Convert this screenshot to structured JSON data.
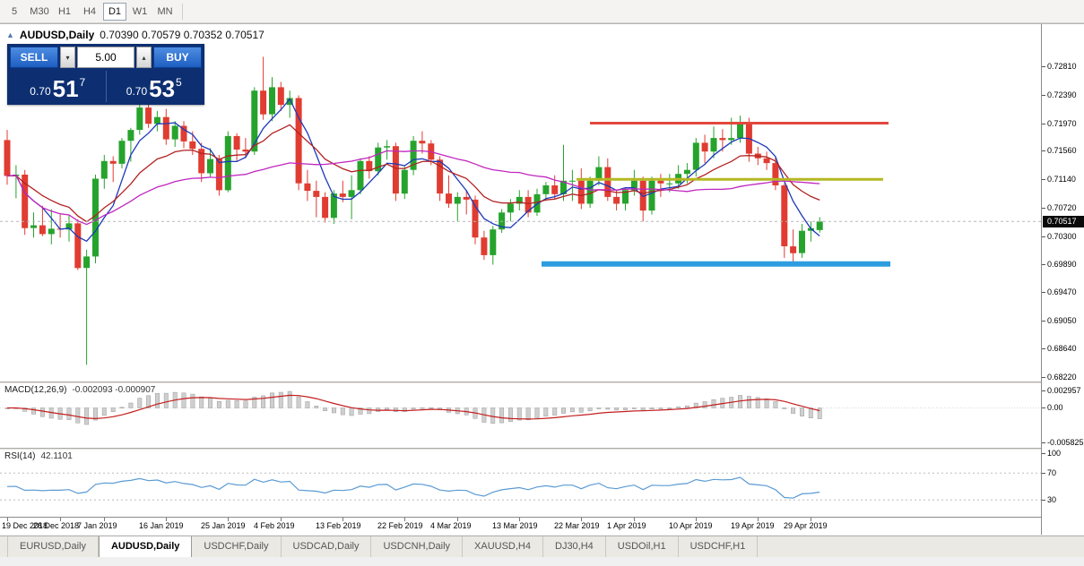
{
  "toolbar": {
    "timeframes": [
      {
        "label": "5",
        "active": false
      },
      {
        "label": "M30",
        "active": false
      },
      {
        "label": "H1",
        "active": false
      },
      {
        "label": "H4",
        "active": false
      },
      {
        "label": "D1",
        "active": true
      },
      {
        "label": "W1",
        "active": false
      },
      {
        "label": "MN",
        "active": false
      }
    ]
  },
  "chart_header": {
    "symbol": "AUDUSD,Daily",
    "ohlc_text": "0.70390 0.70579 0.70352 0.70517"
  },
  "trade_panel": {
    "sell_label": "SELL",
    "buy_label": "BUY",
    "volume": "5.00",
    "sell_price": {
      "prefix": "0.70",
      "big": "51",
      "sup": "7"
    },
    "buy_price": {
      "prefix": "0.70",
      "big": "53",
      "sup": "5"
    }
  },
  "chart_data": {
    "type": "candlestick",
    "symbol": "AUDUSD",
    "timeframe": "Daily",
    "title": "AUDUSD,Daily",
    "ohlc_current": {
      "open": 0.7039,
      "high": 0.70579,
      "low": 0.70352,
      "close": 0.70517
    },
    "current_price": 0.70517,
    "current_price_text": "0.70517",
    "price_axis_ticks": [
      0.7281,
      0.7239,
      0.7197,
      0.7156,
      0.7114,
      0.7072,
      0.703,
      0.6989,
      0.6947,
      0.6905,
      0.6864,
      0.6822
    ],
    "colors": {
      "up": "#26a32c",
      "down": "#e03c31",
      "macd_hist": "#cfcfcf",
      "macd_hist_edge": "#9a9a9a",
      "macd_signal": "#c41e1e",
      "rsi_line": "#5b9bd5"
    },
    "moving_averages": [
      {
        "type": "sma",
        "period": 5,
        "color": "#1c39bb"
      },
      {
        "type": "ema",
        "period": 13,
        "color": "#b22222"
      },
      {
        "type": "sma",
        "period": 34,
        "color": "#c026c0"
      }
    ],
    "hlines": [
      {
        "price": 0.7197,
        "color": "#e3473d",
        "from": 66,
        "to": 99.8,
        "width": 3
      },
      {
        "price": 0.7114,
        "color": "#b3b821",
        "from": 64.5,
        "to": 99.2,
        "width": 3
      },
      {
        "price": 0.6989,
        "color": "#2d9de0",
        "from": 60.5,
        "to": 100,
        "width": 6
      }
    ],
    "macd": {
      "label": "MACD(12,26,9)",
      "values_text": "-0.002093 -0.000907",
      "fast": 12,
      "slow": 26,
      "signal": 9,
      "axis_ticks": [
        {
          "text": "0.002957",
          "value": 0.002957
        },
        {
          "text": "0.00",
          "value": 0
        },
        {
          "text": "-0.005825",
          "value": -0.005825
        }
      ]
    },
    "rsi": {
      "label": "RSI(14)",
      "value_text": "42.1101",
      "period": 14,
      "levels": [
        70,
        30
      ],
      "axis_ticks": [
        {
          "text": "100",
          "value": 100
        },
        {
          "text": "70",
          "value": 70
        },
        {
          "text": "30",
          "value": 30
        }
      ]
    },
    "date_labels": [
      {
        "text": "19 Dec 2018",
        "index": 0
      },
      {
        "text": "28 Dec 2018",
        "index": 6
      },
      {
        "text": "7 Jan 2019",
        "index": 11
      },
      {
        "text": "16 Jan 2019",
        "index": 18
      },
      {
        "text": "25 Jan 2019",
        "index": 25
      },
      {
        "text": "4 Feb 2019",
        "index": 31
      },
      {
        "text": "13 Feb 2019",
        "index": 38
      },
      {
        "text": "22 Feb 2019",
        "index": 45
      },
      {
        "text": "4 Mar 2019",
        "index": 51
      },
      {
        "text": "13 Mar 2019",
        "index": 58
      },
      {
        "text": "22 Mar 2019",
        "index": 65
      },
      {
        "text": "1 Apr 2019",
        "index": 71
      },
      {
        "text": "10 Apr 2019",
        "index": 78
      },
      {
        "text": "19 Apr 2019",
        "index": 85
      },
      {
        "text": "29 Apr 2019",
        "index": 91
      }
    ],
    "candles": [
      [
        0.7172,
        0.7187,
        0.7106,
        0.7119
      ],
      [
        0.7119,
        0.7135,
        0.7086,
        0.7121
      ],
      [
        0.7121,
        0.7128,
        0.7032,
        0.7042
      ],
      [
        0.7042,
        0.7065,
        0.7028,
        0.7046
      ],
      [
        0.7046,
        0.7075,
        0.703,
        0.7033
      ],
      [
        0.7033,
        0.707,
        0.7018,
        0.7041
      ],
      [
        0.7041,
        0.7062,
        0.7028,
        0.704
      ],
      [
        0.704,
        0.7062,
        0.7022,
        0.7049
      ],
      [
        0.7049,
        0.7055,
        0.698,
        0.6983
      ],
      [
        0.6983,
        0.701,
        0.684,
        0.7
      ],
      [
        0.7,
        0.7121,
        0.699,
        0.7115
      ],
      [
        0.7115,
        0.715,
        0.71,
        0.7141
      ],
      [
        0.7141,
        0.7148,
        0.711,
        0.7137
      ],
      [
        0.7137,
        0.7175,
        0.713,
        0.7171
      ],
      [
        0.7171,
        0.719,
        0.714,
        0.7187
      ],
      [
        0.7187,
        0.7225,
        0.718,
        0.722
      ],
      [
        0.722,
        0.7235,
        0.719,
        0.7196
      ],
      [
        0.7196,
        0.7215,
        0.7185,
        0.7206
      ],
      [
        0.7206,
        0.7218,
        0.7165,
        0.7173
      ],
      [
        0.7173,
        0.72,
        0.7162,
        0.7193
      ],
      [
        0.7193,
        0.72,
        0.716,
        0.717
      ],
      [
        0.717,
        0.7185,
        0.715,
        0.7159
      ],
      [
        0.7159,
        0.7168,
        0.711,
        0.7123
      ],
      [
        0.7123,
        0.716,
        0.7118,
        0.7144
      ],
      [
        0.7144,
        0.715,
        0.709,
        0.7098
      ],
      [
        0.7098,
        0.7185,
        0.7095,
        0.7178
      ],
      [
        0.7178,
        0.7182,
        0.714,
        0.7158
      ],
      [
        0.7158,
        0.7175,
        0.7145,
        0.7155
      ],
      [
        0.7155,
        0.725,
        0.715,
        0.7245
      ],
      [
        0.7245,
        0.7295,
        0.7202,
        0.721
      ],
      [
        0.721,
        0.7265,
        0.72,
        0.725
      ],
      [
        0.725,
        0.7258,
        0.7215,
        0.7224
      ],
      [
        0.7224,
        0.7245,
        0.7205,
        0.7234
      ],
      [
        0.7234,
        0.7238,
        0.7098,
        0.7108
      ],
      [
        0.7108,
        0.7128,
        0.7082,
        0.7097
      ],
      [
        0.7097,
        0.7112,
        0.7058,
        0.7088
      ],
      [
        0.7088,
        0.7095,
        0.705,
        0.7057
      ],
      [
        0.7057,
        0.7098,
        0.7048,
        0.7093
      ],
      [
        0.7093,
        0.7112,
        0.708,
        0.7088
      ],
      [
        0.7088,
        0.712,
        0.7055,
        0.7098
      ],
      [
        0.7098,
        0.7145,
        0.7092,
        0.7141
      ],
      [
        0.7141,
        0.7148,
        0.7115,
        0.7126
      ],
      [
        0.7126,
        0.7168,
        0.712,
        0.7161
      ],
      [
        0.7161,
        0.7172,
        0.7143,
        0.7163
      ],
      [
        0.7163,
        0.7168,
        0.7082,
        0.7093
      ],
      [
        0.7093,
        0.7133,
        0.7085,
        0.7128
      ],
      [
        0.7128,
        0.7178,
        0.712,
        0.7171
      ],
      [
        0.7171,
        0.7185,
        0.7152,
        0.7167
      ],
      [
        0.7167,
        0.7172,
        0.7135,
        0.7143
      ],
      [
        0.7143,
        0.7148,
        0.7082,
        0.7093
      ],
      [
        0.7093,
        0.712,
        0.7072,
        0.7078
      ],
      [
        0.7078,
        0.7095,
        0.7052,
        0.7088
      ],
      [
        0.7088,
        0.7098,
        0.7062,
        0.7084
      ],
      [
        0.7084,
        0.709,
        0.7018,
        0.7028
      ],
      [
        0.7028,
        0.7038,
        0.6995,
        0.7002
      ],
      [
        0.7002,
        0.7045,
        0.6988,
        0.704
      ],
      [
        0.704,
        0.707,
        0.7035,
        0.7065
      ],
      [
        0.7065,
        0.7085,
        0.7052,
        0.7078
      ],
      [
        0.7078,
        0.7098,
        0.7068,
        0.7088
      ],
      [
        0.7088,
        0.7098,
        0.7058,
        0.7065
      ],
      [
        0.7065,
        0.71,
        0.706,
        0.7092
      ],
      [
        0.7092,
        0.711,
        0.7082,
        0.7105
      ],
      [
        0.7105,
        0.712,
        0.7085,
        0.7092
      ],
      [
        0.7092,
        0.7165,
        0.7082,
        0.7112
      ],
      [
        0.7112,
        0.7128,
        0.7082,
        0.7112
      ],
      [
        0.7112,
        0.713,
        0.707,
        0.7078
      ],
      [
        0.7078,
        0.7118,
        0.7072,
        0.7112
      ],
      [
        0.7112,
        0.7148,
        0.7105,
        0.7132
      ],
      [
        0.7132,
        0.7145,
        0.7082,
        0.7088
      ],
      [
        0.7088,
        0.7098,
        0.7068,
        0.7078
      ],
      [
        0.7078,
        0.7102,
        0.7068,
        0.7098
      ],
      [
        0.7098,
        0.7128,
        0.709,
        0.7112
      ],
      [
        0.7112,
        0.7118,
        0.7052,
        0.7068
      ],
      [
        0.7068,
        0.7118,
        0.7062,
        0.7112
      ],
      [
        0.7112,
        0.7122,
        0.7088,
        0.7108
      ],
      [
        0.7108,
        0.7122,
        0.7095,
        0.7108
      ],
      [
        0.7108,
        0.7135,
        0.71,
        0.7122
      ],
      [
        0.7122,
        0.7138,
        0.7108,
        0.7128
      ],
      [
        0.7128,
        0.7175,
        0.7118,
        0.7168
      ],
      [
        0.7168,
        0.718,
        0.7138,
        0.7155
      ],
      [
        0.7155,
        0.7192,
        0.7145,
        0.7175
      ],
      [
        0.7175,
        0.7188,
        0.7155,
        0.7172
      ],
      [
        0.7172,
        0.7205,
        0.7165,
        0.7175
      ],
      [
        0.7175,
        0.7208,
        0.7168,
        0.7198
      ],
      [
        0.7198,
        0.7205,
        0.714,
        0.7152
      ],
      [
        0.7152,
        0.7162,
        0.7135,
        0.7145
      ],
      [
        0.7145,
        0.7155,
        0.7128,
        0.7138
      ],
      [
        0.7138,
        0.7148,
        0.7098,
        0.7105
      ],
      [
        0.7105,
        0.7108,
        0.6998,
        0.7015
      ],
      [
        0.7015,
        0.704,
        0.6988,
        0.7005
      ],
      [
        0.7005,
        0.7048,
        0.6998,
        0.7038
      ],
      [
        0.7038,
        0.7052,
        0.7022,
        0.7042
      ],
      [
        0.7039,
        0.70579,
        0.70352,
        0.70517
      ]
    ]
  },
  "bottom_tabs": [
    {
      "label": "EURUSD,Daily",
      "active": false
    },
    {
      "label": "AUDUSD,Daily",
      "active": true
    },
    {
      "label": "USDCHF,Daily",
      "active": false
    },
    {
      "label": "USDCAD,Daily",
      "active": false
    },
    {
      "label": "USDCNH,Daily",
      "active": false
    },
    {
      "label": "XAUUSD,H4",
      "active": false
    },
    {
      "label": "DJ30,H4",
      "active": false
    },
    {
      "label": "USDOil,H1",
      "active": false
    },
    {
      "label": "USDCHF,H1",
      "active": false
    }
  ]
}
